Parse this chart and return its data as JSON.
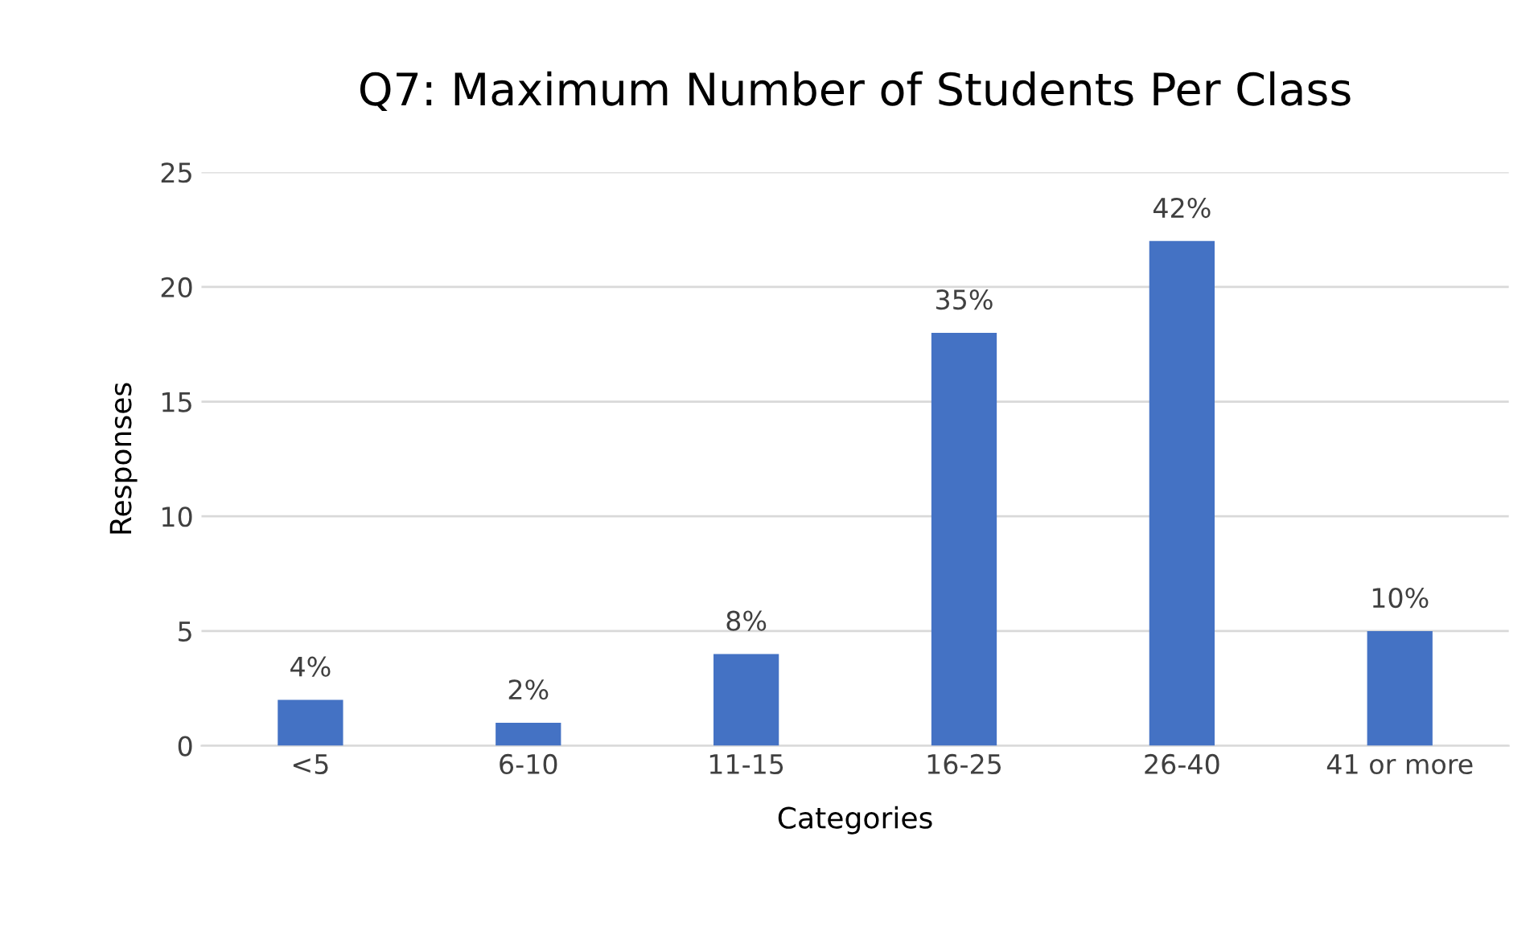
{
  "chart_data": {
    "type": "bar",
    "title": "Q7: Maximum Number of Students Per Class",
    "xlabel": "Categories",
    "ylabel": "Responses",
    "categories": [
      "<5",
      "6-10",
      "11-15",
      "16-25",
      "26-40",
      "41 or more"
    ],
    "values": [
      2,
      1,
      4,
      18,
      22,
      5
    ],
    "annotations": [
      {
        "text": "4%",
        "x": "<5",
        "y": 2
      },
      {
        "text": "2%",
        "x": "6-10",
        "y": 1
      },
      {
        "text": "8%",
        "x": "11-15",
        "y": 4
      },
      {
        "text": "35%",
        "x": "16-25",
        "y": 18
      },
      {
        "text": "42%",
        "x": "26-40",
        "y": 22
      },
      {
        "text": "10%",
        "x": "41 or more",
        "y": 5
      }
    ],
    "color": "#4472c4",
    "ylim": [
      0,
      25
    ],
    "yticks": [
      0,
      5,
      10,
      15,
      20,
      25
    ],
    "grid": "y",
    "legend": false
  }
}
